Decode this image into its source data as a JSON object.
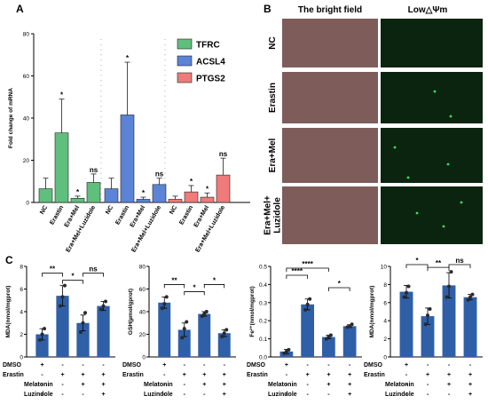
{
  "panels": {
    "a": "A",
    "b": "B",
    "c": "C"
  },
  "colors": {
    "tfrc": "#5fbf7d",
    "acsl4": "#5b83d6",
    "ptgs2": "#ef7b7b",
    "barC": "#2f5fa6"
  },
  "chart_data": [
    {
      "type": "bar",
      "id": "A",
      "ylabel": "Fold change of mRNA",
      "ylim": [
        0,
        80
      ],
      "yticks": [
        "0",
        "20",
        "40",
        "60",
        "80"
      ],
      "legend_position": "top-right",
      "categories": [
        "NC",
        "Erastin",
        "Era+Mel",
        "Era+Mel+Luzidole"
      ],
      "series": [
        {
          "name": "TFRC",
          "values": [
            6.5,
            33,
            2,
            9.5
          ],
          "errors": [
            5,
            16,
            1,
            4
          ],
          "sig": [
            "",
            "*",
            "*",
            "ns"
          ]
        },
        {
          "name": "ACSL4",
          "values": [
            6.5,
            41.5,
            1.5,
            8.5
          ],
          "errors": [
            5,
            25,
            1,
            3
          ],
          "sig": [
            "",
            "*",
            "*",
            "ns"
          ]
        },
        {
          "name": "PTGS2",
          "values": [
            1.5,
            5,
            2.5,
            13
          ],
          "errors": [
            1.5,
            3,
            2,
            8
          ],
          "sig": [
            "",
            "*",
            "*",
            "ns"
          ]
        }
      ]
    },
    {
      "type": "bar",
      "id": "C1",
      "ylabel": "MDA(nmol/mgprot)",
      "ylim": [
        0,
        8
      ],
      "yticks": [
        "0",
        "2",
        "4",
        "6",
        "8"
      ],
      "values": [
        2.0,
        5.4,
        3.0,
        4.5
      ],
      "errors": [
        0.5,
        0.9,
        0.7,
        0.4
      ],
      "points": [
        [
          1.5,
          2.0,
          2.5
        ],
        [
          4.5,
          5.3,
          6.3
        ],
        [
          2.2,
          3.0,
          3.9
        ],
        [
          4.2,
          4.5,
          4.9
        ]
      ],
      "sig": [
        {
          "from": 0,
          "to": 1,
          "label": "**"
        },
        {
          "from": 1,
          "to": 2,
          "label": "*"
        },
        {
          "from": 2,
          "to": 3,
          "label": "ns"
        }
      ]
    },
    {
      "type": "bar",
      "id": "C2",
      "ylabel": "GSH(µmol/gprot)",
      "ylim": [
        0,
        80
      ],
      "yticks": [
        "0",
        "20",
        "40",
        "60",
        "80"
      ],
      "values": [
        48,
        24,
        38,
        21
      ],
      "errors": [
        5,
        6,
        2,
        3
      ],
      "points": [
        [
          43,
          47,
          53
        ],
        [
          17,
          25,
          31
        ],
        [
          36,
          38,
          40
        ],
        [
          18,
          21,
          24
        ]
      ],
      "sig": [
        {
          "from": 0,
          "to": 1,
          "label": "**"
        },
        {
          "from": 1,
          "to": 2,
          "label": "*"
        },
        {
          "from": 2,
          "to": 3,
          "label": "*"
        }
      ]
    },
    {
      "type": "bar",
      "id": "C3",
      "ylabel": "Fe²⁺(nmol/mgprot)",
      "ylim": [
        0,
        0.5
      ],
      "yticks": [
        "0.0",
        "0.1",
        "0.2",
        "0.3",
        "0.4",
        "0.5"
      ],
      "values": [
        0.03,
        0.29,
        0.11,
        0.17
      ],
      "errors": [
        0.012,
        0.03,
        0.01,
        0.008
      ],
      "points": [
        [
          0.02,
          0.03,
          0.04
        ],
        [
          0.26,
          0.29,
          0.32
        ],
        [
          0.1,
          0.11,
          0.12
        ],
        [
          0.165,
          0.17,
          0.18
        ]
      ],
      "sig": [
        {
          "from": 0,
          "to": 1,
          "label": "****"
        },
        {
          "from": 0,
          "to": 2,
          "label": "****"
        },
        {
          "from": 2,
          "to": 3,
          "label": "*"
        }
      ]
    },
    {
      "type": "bar",
      "id": "C4",
      "ylabel": "MDA(nmol/mgprot)",
      "ylim": [
        0,
        10
      ],
      "yticks": [
        "0",
        "2",
        "4",
        "6",
        "8",
        "10"
      ],
      "values": [
        7.2,
        4.5,
        7.9,
        6.6
      ],
      "errors": [
        0.7,
        0.9,
        1.4,
        0.3
      ],
      "points": [
        [
          6.6,
          7.1,
          7.8
        ],
        [
          3.6,
          4.6,
          5.3
        ],
        [
          6.6,
          7.8,
          9.4
        ],
        [
          6.3,
          6.6,
          6.9
        ]
      ],
      "sig": [
        {
          "from": 0,
          "to": 1,
          "label": "*"
        },
        {
          "from": 1,
          "to": 2,
          "label": "**"
        },
        {
          "from": 2,
          "to": 3,
          "label": "ns"
        }
      ]
    }
  ],
  "treatment_table": {
    "rows": [
      {
        "label": "DMSO",
        "marks": [
          "+",
          "-",
          "-",
          "-"
        ]
      },
      {
        "label": "Erastin",
        "marks": [
          "-",
          "+",
          "+",
          "+"
        ]
      },
      {
        "label": "Melatonin",
        "marks": [
          "-",
          "-",
          "+",
          "+"
        ]
      },
      {
        "label": "Luzindole",
        "marks": [
          "-",
          "-",
          "-",
          "+"
        ]
      }
    ]
  },
  "panel_b": {
    "col_headers": [
      "The bright field",
      "Low△Ψm"
    ],
    "row_labels": [
      "NC",
      "Erastin",
      "Era+Mel",
      "Era+Mel+\nLuzidole"
    ]
  }
}
